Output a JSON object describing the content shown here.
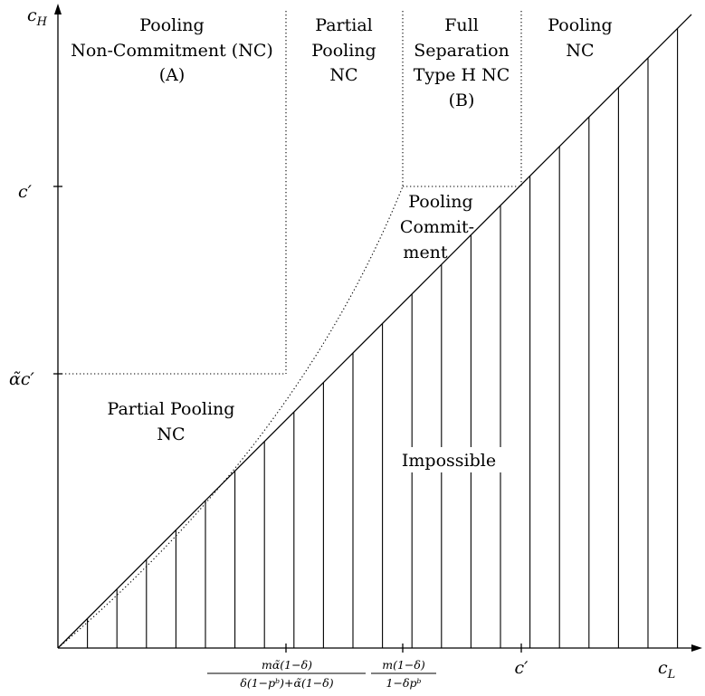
{
  "axes": {
    "y_label": {
      "main": "c",
      "sub": "H"
    },
    "x_label": {
      "main": "c",
      "sub": "L"
    }
  },
  "y_ticks": [
    {
      "id": "c-prime",
      "label": "c′"
    },
    {
      "id": "alpha-c-prime",
      "label": "α̃c′"
    }
  ],
  "x_ticks": [
    {
      "id": "threshold-1",
      "numerator": "mα̃(1−δ)",
      "denominator": "δ(1−pᵇ)+α̃(1−δ)"
    },
    {
      "id": "threshold-2",
      "numerator": "m(1−δ)",
      "denominator": "1−δpᵇ"
    },
    {
      "id": "c-prime",
      "label": "c′"
    }
  ],
  "regions": {
    "pooling_nc_a": [
      "Pooling",
      "Non-Commitment (NC)",
      "(A)"
    ],
    "partial_pooling_nc_top": [
      "Partial",
      "Pooling",
      "NC"
    ],
    "full_separation": [
      "Full",
      "Separation",
      "Type H NC",
      "(B)"
    ],
    "pooling_nc_right": [
      "Pooling",
      "NC"
    ],
    "pooling_commitment": [
      "Pooling",
      "Commit-",
      "ment"
    ],
    "partial_pooling_nc_left": [
      "Partial Pooling",
      "NC"
    ],
    "impossible": [
      "Impossible"
    ]
  }
}
